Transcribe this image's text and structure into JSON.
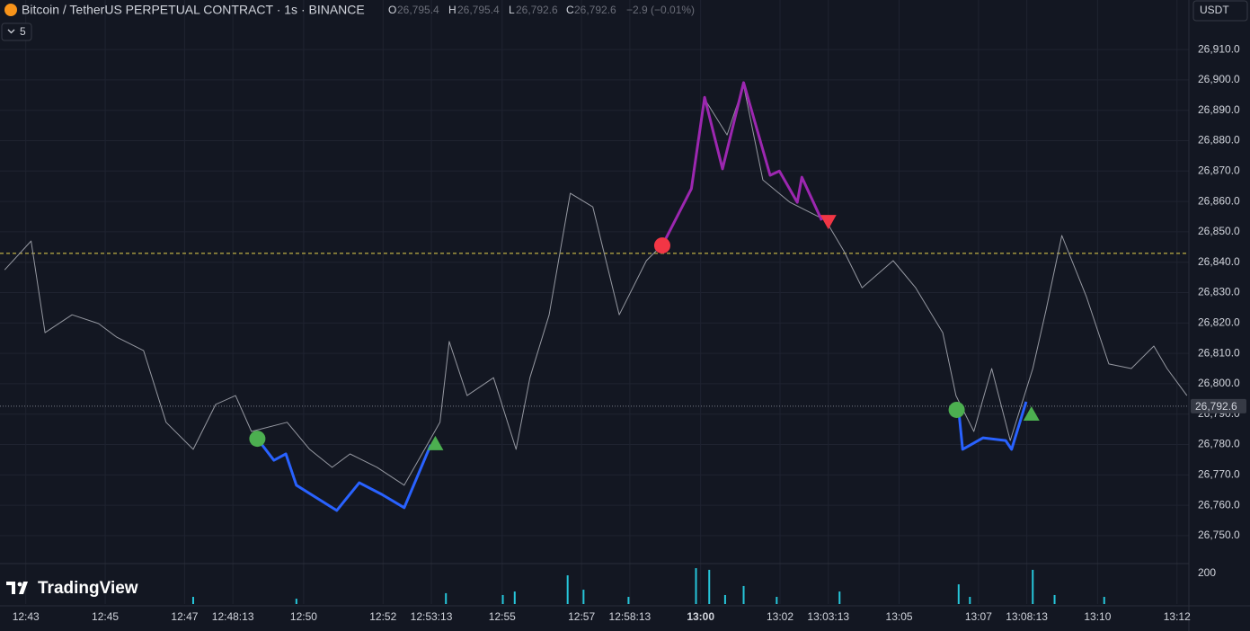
{
  "toolbar": {
    "title": "Bitcoin / TetherUS PERPETUAL CONTRACT · 1s · BINANCE",
    "ohlc": [
      {
        "label": "O",
        "value": "26,795.4"
      },
      {
        "label": "H",
        "value": "26,795.4"
      },
      {
        "label": "L",
        "value": "26,792.6"
      },
      {
        "label": "C",
        "value": "26,792.6"
      }
    ],
    "change": "−2.9 (−0.01%)",
    "interval_count": "5",
    "currency": "USDT",
    "brand": "TradingView"
  },
  "chart_data": {
    "type": "line",
    "xlim": [
      "12:42:21",
      "13:12:18"
    ],
    "xticks": [
      "12:43",
      "12:45",
      "12:47",
      "12:48:13",
      "12:50",
      "12:52",
      "12:53:13",
      "12:55",
      "12:57",
      "12:58:13",
      "13:00",
      "13:02",
      "13:03:13",
      "13:05",
      "13:07",
      "13:08:13",
      "13:10",
      "13:12"
    ],
    "ylim": [
      26741.4,
      26926.3
    ],
    "yticks": [
      {
        "value": 26910,
        "label": "26,910.0"
      },
      {
        "value": 26900,
        "label": "26,900.0"
      },
      {
        "value": 26890,
        "label": "26,890.0"
      },
      {
        "value": 26880,
        "label": "26,880.0"
      },
      {
        "value": 26870,
        "label": "26,870.0"
      },
      {
        "value": 26860,
        "label": "26,860.0"
      },
      {
        "value": 26850,
        "label": "26,850.0"
      },
      {
        "value": 26840,
        "label": "26,840.0"
      },
      {
        "value": 26830,
        "label": "26,830.0"
      },
      {
        "value": 26820,
        "label": "26,820.0"
      },
      {
        "value": 26810,
        "label": "26,810.0"
      },
      {
        "value": 26800,
        "label": "26,800.0"
      },
      {
        "value": 26790,
        "label": "26,790.0"
      },
      {
        "value": 26780,
        "label": "26,780.0"
      },
      {
        "value": 26770,
        "label": "26,770.0"
      },
      {
        "value": 26760,
        "label": "26,760.0"
      },
      {
        "value": 26750,
        "label": "26,750.0"
      }
    ],
    "grid": true,
    "series": [
      {
        "color": "#9598a1",
        "width": 1,
        "x": [
          "12:42:28",
          "12:43:08",
          "12:43:29",
          "12:44:10",
          "12:44:50",
          "12:45:17",
          "12:45:58",
          "12:46:32",
          "12:47:13",
          "12:47:47",
          "12:48:17",
          "12:48:41",
          "12:49:35",
          "12:50:09",
          "12:50:43",
          "12:51:10",
          "12:51:51",
          "12:52:32",
          "12:53:26",
          "12:53:40",
          "12:54:07",
          "12:54:47",
          "12:55:21",
          "12:55:42",
          "12:56:11",
          "12:56:43",
          "12:57:17",
          "12:57:57",
          "12:58:38",
          "12:59:05",
          "12:59:46",
          "13:00:06",
          "13:00:40",
          "13:01:05",
          "13:01:34",
          "13:02:15",
          "13:03:09",
          "13:03:37",
          "13:04:04",
          "13:04:51",
          "13:05:25",
          "13:06:06",
          "13:06:26",
          "13:06:53",
          "13:07:20",
          "13:07:48",
          "13:08:22",
          "13:08:42",
          "13:09:06",
          "13:09:43",
          "13:10:17",
          "13:10:51",
          "13:11:25",
          "13:11:45",
          "13:12:15"
        ],
        "values": [
          26837.5,
          26847.0,
          26816.8,
          26822.7,
          26819.8,
          26815.4,
          26810.9,
          26787.3,
          26778.4,
          26793.2,
          26796.1,
          26784.3,
          26787.3,
          26778.4,
          26772.5,
          26776.9,
          26772.5,
          26766.6,
          26787.3,
          26813.9,
          26796.1,
          26802.0,
          26778.4,
          26802.0,
          26822.7,
          26862.7,
          26858.2,
          26822.7,
          26840.5,
          26846.4,
          26864.2,
          26893.7,
          26881.9,
          26898.2,
          26867.1,
          26859.7,
          26853.8,
          26843.5,
          26831.6,
          26840.5,
          26831.6,
          26816.8,
          26796.1,
          26784.3,
          26805.0,
          26781.3,
          26805.0,
          26824.2,
          26848.8,
          26828.7,
          26806.5,
          26805.0,
          26812.4,
          26805.0,
          26796.1
        ]
      },
      {
        "color": "#2962ff",
        "width": 3,
        "x": [
          "12:48:50",
          "12:49:15",
          "12:49:33",
          "12:49:49",
          "12:50:50",
          "12:51:24",
          "12:51:58",
          "12:52:32",
          "12:53:12"
        ],
        "values": [
          26781.9,
          26774.8,
          26776.9,
          26766.6,
          26758.3,
          26767.4,
          26763.6,
          26759.2,
          26779.9
        ]
      },
      {
        "color": "#9c27b0",
        "width": 3,
        "x": [
          "12:59:02",
          "12:59:46",
          "13:00:06",
          "13:00:33",
          "13:01:05",
          "13:01:45",
          "13:01:59",
          "13:02:26",
          "13:02:33",
          "13:03:03"
        ],
        "values": [
          26845.5,
          26864.2,
          26894.3,
          26870.7,
          26899.1,
          26868.6,
          26870.0,
          26859.7,
          26868.0,
          26853.8
        ]
      },
      {
        "color": "#2962ff",
        "width": 3,
        "x": [
          "13:06:30",
          "13:06:36",
          "13:07:07",
          "13:07:41",
          "13:07:50",
          "13:08:12"
        ],
        "values": [
          26791.4,
          26778.4,
          26782.2,
          26781.3,
          26778.4,
          26794.1
        ]
      }
    ],
    "markers": [
      {
        "shape": "circle",
        "color": "#4caf50",
        "x": "12:48:50",
        "value": 26781.9
      },
      {
        "shape": "triangle-up",
        "color": "#4caf50",
        "x": "12:53:19",
        "value": 26780.2
      },
      {
        "shape": "circle",
        "color": "#f23645",
        "x": "12:59:02",
        "value": 26845.5
      },
      {
        "shape": "triangle-down",
        "color": "#f23645",
        "x": "13:03:13",
        "value": 26853.5
      },
      {
        "shape": "circle",
        "color": "#4caf50",
        "x": "13:06:27",
        "value": 26791.4
      },
      {
        "shape": "triangle-up",
        "color": "#4caf50",
        "x": "13:08:20",
        "value": 26789.9
      }
    ],
    "hlines": [
      {
        "value": 26842.9,
        "color": "#e8d44d",
        "style": "dashed"
      }
    ],
    "last_price": {
      "value": 26792.6,
      "label": "26,792.6",
      "color": "#787b86"
    },
    "volume": {
      "color": "#26c6da",
      "ylim": [
        0,
        259
      ],
      "yticks": [
        200
      ],
      "x": [
        "12:47:13",
        "12:49:49",
        "12:53:35",
        "12:55:01",
        "12:55:19",
        "12:56:39",
        "12:57:03",
        "12:58:11",
        "12:59:53",
        "13:00:13",
        "13:00:37",
        "13:01:05",
        "13:01:55",
        "13:03:30",
        "13:06:30",
        "13:06:47",
        "13:08:22",
        "13:08:55",
        "13:10:10"
      ],
      "values": [
        47,
        35,
        71,
        59,
        82,
        188,
        94,
        47,
        235,
        224,
        59,
        118,
        47,
        82,
        129,
        47,
        224,
        59,
        47
      ]
    }
  }
}
